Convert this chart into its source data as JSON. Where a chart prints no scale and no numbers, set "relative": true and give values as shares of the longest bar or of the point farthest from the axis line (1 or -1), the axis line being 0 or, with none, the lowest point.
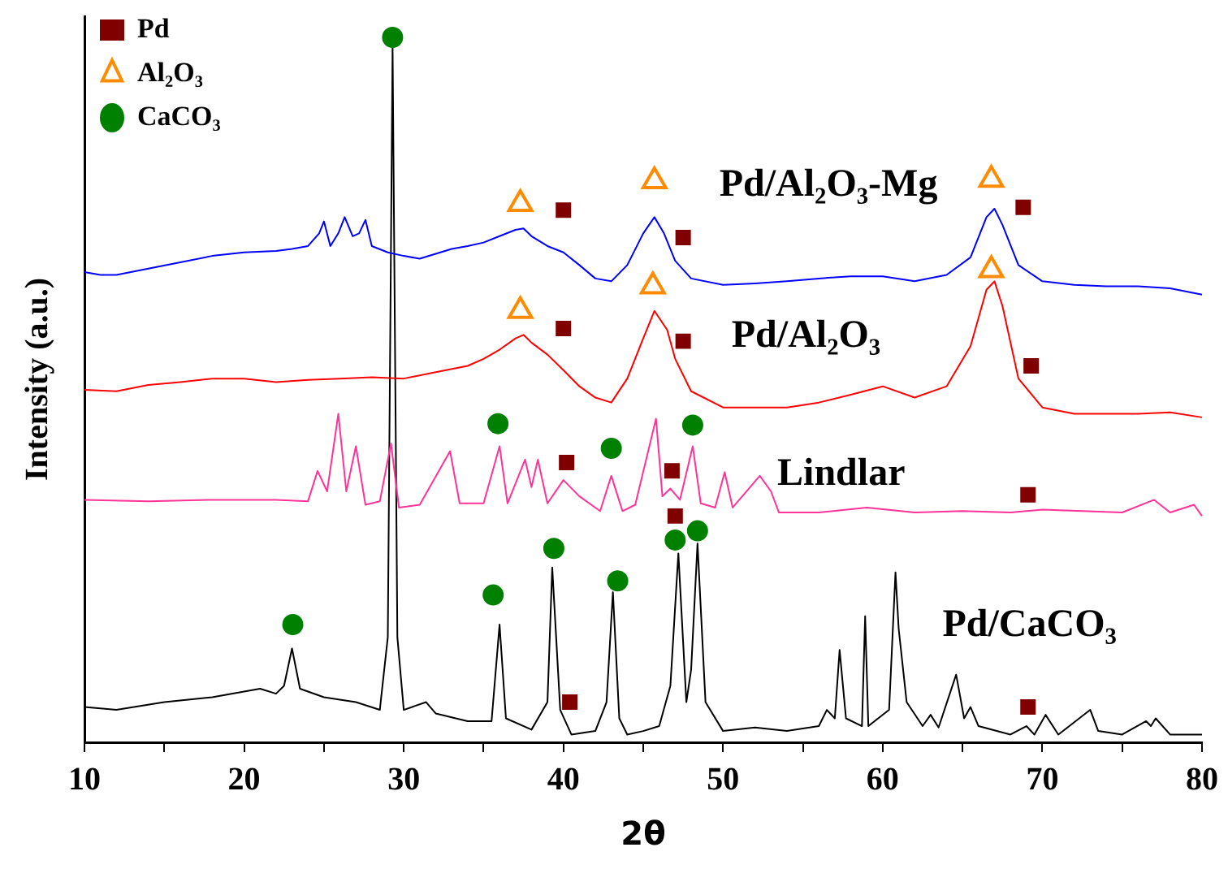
{
  "chart_data": {
    "type": "line",
    "xlabel": "2θ",
    "ylabel": "Intensity (a.u.)",
    "relative": true,
    "legend": "top left",
    "xlim": [
      10,
      80
    ],
    "xticks": [
      10,
      {
        "value": 15,
        "label": null
      },
      20,
      {
        "value": 25,
        "label": null
      },
      30,
      {
        "value": 35,
        "label": null
      },
      40,
      {
        "value": 45,
        "label": null
      },
      50,
      {
        "value": 55,
        "label": null
      },
      60,
      {
        "value": 65,
        "label": null
      },
      70,
      {
        "value": 75,
        "label": null
      },
      80
    ],
    "series": [
      {
        "name": "Pd/Al₂O₃-Mg",
        "color": "#0000ff",
        "marker": "none",
        "x": [
          10,
          11,
          12,
          14,
          16,
          18,
          20,
          22,
          23,
          24,
          24.7,
          25.0,
          25.4,
          25.9,
          26.3,
          26.8,
          27.2,
          27.6,
          28,
          29,
          30,
          31,
          32,
          33,
          34,
          35,
          36,
          37,
          37.5,
          38,
          39,
          40,
          41,
          42,
          43,
          44,
          45,
          45.7,
          46.3,
          47,
          48,
          50,
          52,
          54,
          56,
          58,
          60,
          62,
          64,
          65.5,
          66.5,
          67,
          67.5,
          68.5,
          70,
          72,
          74,
          76,
          78,
          80
        ],
        "values": [
          0.667,
          0.663,
          0.663,
          0.672,
          0.681,
          0.69,
          0.695,
          0.697,
          0.7,
          0.704,
          0.722,
          0.739,
          0.704,
          0.722,
          0.745,
          0.718,
          0.722,
          0.741,
          0.704,
          0.695,
          0.69,
          0.686,
          0.693,
          0.7,
          0.704,
          0.709,
          0.718,
          0.727,
          0.729,
          0.718,
          0.704,
          0.695,
          0.677,
          0.658,
          0.654,
          0.677,
          0.722,
          0.745,
          0.722,
          0.683,
          0.658,
          0.649,
          0.651,
          0.654,
          0.658,
          0.661,
          0.661,
          0.654,
          0.663,
          0.688,
          0.745,
          0.757,
          0.734,
          0.677,
          0.654,
          0.649,
          0.647,
          0.647,
          0.644,
          0.635
        ]
      },
      {
        "name": "Pd/Al₂O₃",
        "color": "#ff0000",
        "marker": "none",
        "x": [
          10,
          12,
          14,
          16,
          18,
          20,
          22,
          24,
          26,
          28,
          30,
          32,
          34,
          35,
          36,
          37,
          37.5,
          38,
          39,
          40,
          41,
          42,
          43,
          44,
          45,
          45.7,
          46.5,
          47,
          48,
          50,
          52,
          54,
          56,
          58,
          60,
          62,
          64,
          65.5,
          66.5,
          67,
          67.5,
          68.5,
          70,
          72,
          74,
          76,
          78,
          80
        ],
        "values": [
          0.5,
          0.498,
          0.507,
          0.511,
          0.516,
          0.516,
          0.511,
          0.514,
          0.516,
          0.518,
          0.516,
          0.525,
          0.534,
          0.544,
          0.557,
          0.573,
          0.578,
          0.567,
          0.55,
          0.528,
          0.505,
          0.489,
          0.482,
          0.516,
          0.573,
          0.612,
          0.585,
          0.544,
          0.498,
          0.475,
          0.475,
          0.475,
          0.482,
          0.493,
          0.505,
          0.489,
          0.505,
          0.562,
          0.642,
          0.654,
          0.619,
          0.516,
          0.475,
          0.466,
          0.466,
          0.466,
          0.468,
          0.461
        ]
      },
      {
        "name": "Lindlar",
        "color": "#ff3399",
        "marker": "none",
        "x": [
          10,
          14,
          18,
          22,
          24,
          24.6,
          25.2,
          25.9,
          26.4,
          27,
          27.6,
          28.5,
          29.2,
          29.7,
          31,
          32.9,
          33.5,
          35,
          36,
          36.5,
          37.6,
          38,
          38.4,
          39,
          40,
          41,
          42.3,
          43,
          43.7,
          44.5,
          45.8,
          46.2,
          46.7,
          47.3,
          48.1,
          48.6,
          49.5,
          50.1,
          50.6,
          52.3,
          53,
          53.5,
          56,
          59,
          62,
          65,
          68,
          70,
          75,
          77,
          78,
          79.5,
          80
        ],
        "values": [
          0.344,
          0.342,
          0.344,
          0.344,
          0.342,
          0.385,
          0.356,
          0.466,
          0.356,
          0.42,
          0.337,
          0.342,
          0.424,
          0.333,
          0.337,
          0.413,
          0.339,
          0.339,
          0.42,
          0.339,
          0.401,
          0.362,
          0.401,
          0.339,
          0.372,
          0.349,
          0.328,
          0.378,
          0.328,
          0.337,
          0.459,
          0.349,
          0.36,
          0.344,
          0.42,
          0.339,
          0.333,
          0.383,
          0.333,
          0.378,
          0.356,
          0.326,
          0.326,
          0.333,
          0.326,
          0.328,
          0.326,
          0.33,
          0.326,
          0.344,
          0.326,
          0.337,
          0.321
        ]
      },
      {
        "name": "Pd/CaCO₃",
        "color": "#000000",
        "marker": "none",
        "x": [
          10,
          12,
          15,
          18,
          21,
          22,
          22.5,
          23,
          23.5,
          25,
          27,
          28.5,
          29,
          29.3,
          29.6,
          30,
          31.4,
          32,
          34,
          35.5,
          36,
          36.4,
          38,
          39,
          39.3,
          39.8,
          40.5,
          42,
          42.7,
          43.1,
          43.5,
          44,
          45,
          46,
          46.7,
          47.2,
          47.7,
          48,
          48.4,
          48.9,
          50,
          52,
          54,
          56,
          56.5,
          57,
          57.3,
          57.7,
          58.7,
          58.9,
          59.1,
          60.4,
          60.8,
          61,
          61.5,
          62.5,
          63,
          63.5,
          64.6,
          65.1,
          65.5,
          66,
          68,
          69,
          69.5,
          70.2,
          71,
          73,
          73.5,
          75,
          76.5,
          76.8,
          77.1,
          78,
          80
        ],
        "values": [
          0.05,
          0.046,
          0.057,
          0.064,
          0.076,
          0.069,
          0.08,
          0.133,
          0.076,
          0.064,
          0.057,
          0.046,
          0.149,
          0.986,
          0.149,
          0.046,
          0.057,
          0.041,
          0.03,
          0.03,
          0.167,
          0.034,
          0.018,
          0.057,
          0.248,
          0.046,
          0.011,
          0.016,
          0.057,
          0.213,
          0.034,
          0.011,
          0.016,
          0.023,
          0.08,
          0.268,
          0.057,
          0.103,
          0.282,
          0.057,
          0.016,
          0.021,
          0.016,
          0.023,
          0.046,
          0.034,
          0.131,
          0.034,
          0.023,
          0.179,
          0.023,
          0.046,
          0.241,
          0.161,
          0.057,
          0.023,
          0.039,
          0.021,
          0.096,
          0.034,
          0.05,
          0.023,
          0.011,
          0.023,
          0.011,
          0.039,
          0.011,
          0.046,
          0.016,
          0.011,
          0.03,
          0.023,
          0.034,
          0.011,
          0.011
        ]
      },
      {
        "name": "Pd",
        "type": "scatter",
        "marker": "square",
        "color": "#800000",
        "x": [
          40.0,
          47.5,
          68.8,
          40.0,
          47.5,
          69.3,
          40.2,
          46.8,
          69.1,
          40.4,
          47.0,
          69.1
        ],
        "values": [
          0.755,
          0.716,
          0.759,
          0.587,
          0.569,
          0.534,
          0.397,
          0.385,
          0.351,
          0.057,
          0.321,
          0.05
        ]
      },
      {
        "name": "Al₂O₃",
        "type": "scatter",
        "marker": "triangle",
        "color": "#ff8c00",
        "x": [
          37.3,
          45.7,
          66.8,
          37.3,
          45.6,
          66.8
        ],
        "values": [
          0.764,
          0.796,
          0.798,
          0.612,
          0.647,
          0.67
        ]
      },
      {
        "name": "CaCO₃",
        "type": "scatter",
        "marker": "circle",
        "color": "#008000",
        "x": [
          29.3,
          35.9,
          43.0,
          48.1,
          23.05,
          35.6,
          39.4,
          43.4,
          47.0,
          48.4
        ],
        "values": [
          1.0,
          0.452,
          0.417,
          0.45,
          0.167,
          0.209,
          0.275,
          0.229,
          0.287,
          0.3
        ]
      }
    ]
  }
}
